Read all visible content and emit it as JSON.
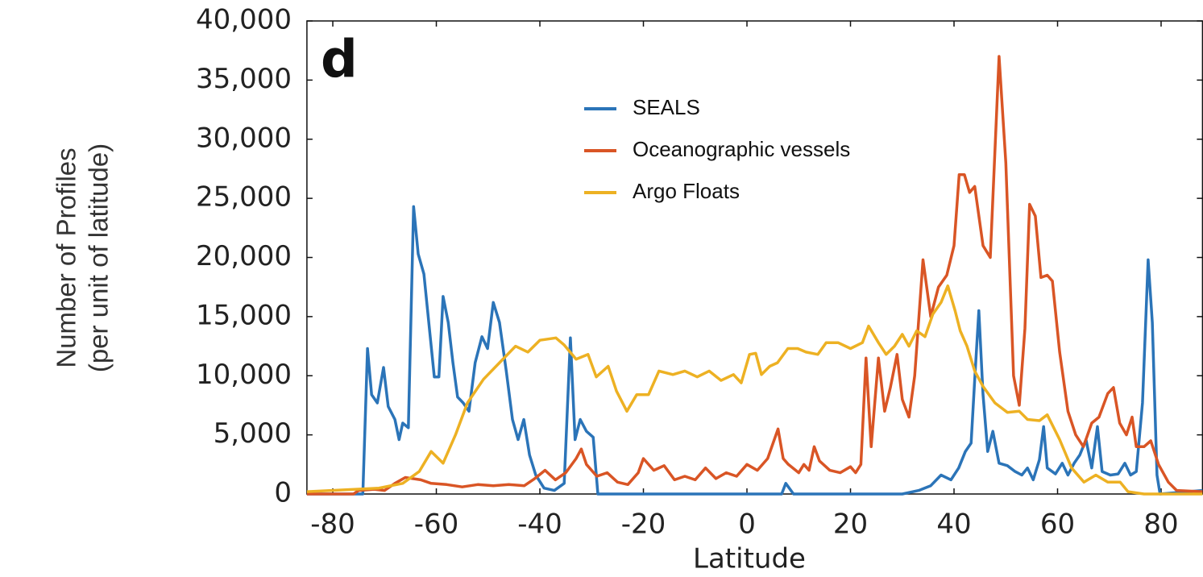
{
  "chart_data": {
    "type": "line",
    "panel_label": "d",
    "xlabel": "Latitude",
    "ylabel": [
      "Number of Profiles",
      "(per unit of latitude)"
    ],
    "xlim": [
      -85,
      88
    ],
    "xticks": [
      -80,
      -60,
      -40,
      -20,
      0,
      20,
      40,
      60,
      80
    ],
    "ylim": [
      0,
      40000
    ],
    "yticks": [
      0,
      {
        "value": 5000,
        "label": "5,000"
      },
      {
        "value": 10000,
        "label": "10,000"
      },
      {
        "value": 15000,
        "label": "15,000"
      },
      {
        "value": 20000,
        "label": "20,000"
      },
      {
        "value": 25000,
        "label": "25,000"
      },
      {
        "value": 30000,
        "label": "30,000"
      },
      {
        "value": 35000,
        "label": "35,000"
      },
      {
        "value": 40000,
        "label": "40,000"
      }
    ],
    "legend": "top-center",
    "series": [
      {
        "name": "SEALS",
        "color": "#2b74b8",
        "x": [
          -85,
          -74.2,
          -73.3,
          -72.5,
          -71.4,
          -70.2,
          -69.3,
          -68,
          -67.2,
          -66.5,
          -65.4,
          -64.4,
          -63.5,
          -62.4,
          -61.3,
          -60.4,
          -59.5,
          -58.7,
          -57.7,
          -56.8,
          -55.9,
          -54.8,
          -53.7,
          -52.5,
          -51.2,
          -50.1,
          -49,
          -47.8,
          -46.5,
          -45.3,
          -44.2,
          -43.1,
          -42,
          -40.8,
          -39.2,
          -37.2,
          -35.3,
          -34.1,
          -33.2,
          -32.2,
          -31,
          -29.7,
          -28.8,
          6.7,
          7.5,
          9,
          30,
          33.2,
          35.5,
          37.5,
          39.4,
          40.9,
          42.2,
          43.3,
          44,
          44.8,
          45.6,
          46.5,
          47.5,
          48.7,
          50.3,
          51.8,
          53.1,
          54.2,
          55.3,
          56.5,
          57.3,
          58,
          59.6,
          60.9,
          62,
          63.2,
          64.3,
          65.5,
          66.6,
          67.7,
          68.6,
          70.2,
          71.7,
          73,
          74.1,
          75.2,
          76.4,
          77.5,
          78.3,
          79.2,
          79.8,
          88
        ],
        "values": [
          0,
          0,
          12300,
          8400,
          7700,
          10700,
          7400,
          6300,
          4600,
          6000,
          5600,
          24300,
          20300,
          18600,
          13800,
          9900,
          9900,
          16700,
          14500,
          11100,
          8200,
          7700,
          7000,
          11100,
          13300,
          12300,
          16200,
          14500,
          10400,
          6300,
          4600,
          6300,
          3300,
          1600,
          500,
          300,
          900,
          13200,
          4600,
          6300,
          5300,
          4800,
          0,
          0,
          900,
          0,
          0,
          300,
          700,
          1600,
          1200,
          2200,
          3600,
          4300,
          9700,
          15500,
          8400,
          3600,
          5300,
          2600,
          2400,
          1900,
          1600,
          2200,
          1200,
          2900,
          5700,
          2200,
          1700,
          2600,
          1600,
          2600,
          3300,
          4600,
          2200,
          5700,
          1900,
          1600,
          1700,
          2600,
          1600,
          1900,
          7700,
          19800,
          14500,
          1600,
          0,
          300
        ]
      },
      {
        "name": "Oceanographic vessels",
        "color": "#d95525",
        "x": [
          -85,
          -76,
          -75,
          -72,
          -70,
          -68,
          -66,
          -63,
          -61,
          -58,
          -55,
          -52,
          -49,
          -46,
          -43,
          -41,
          -39,
          -37,
          -35,
          -33,
          -32,
          -31,
          -29,
          -27,
          -25,
          -23,
          -21,
          -20,
          -18,
          -16,
          -14,
          -12,
          -10,
          -8,
          -6,
          -4,
          -2,
          0,
          2,
          4,
          6,
          7,
          8,
          10,
          11,
          12,
          13,
          14,
          16,
          18,
          20,
          21,
          22,
          23,
          24,
          25.4,
          26.6,
          27.7,
          29,
          30,
          31.3,
          32.4,
          34,
          35.5,
          37,
          38.6,
          40,
          41,
          42,
          43,
          44,
          45.6,
          47,
          48.7,
          50,
          51.5,
          52.6,
          53.7,
          54.6,
          55.7,
          56.8,
          58,
          59,
          60.4,
          62,
          63.5,
          65,
          66.6,
          68,
          69.7,
          70.8,
          72,
          73.3,
          74.4,
          75.2,
          76.7,
          78,
          79.5,
          81.4,
          83,
          88
        ],
        "values": [
          0,
          0,
          300,
          400,
          300,
          900,
          1400,
          1200,
          900,
          800,
          600,
          800,
          700,
          800,
          700,
          1300,
          2000,
          1200,
          1800,
          3000,
          3800,
          2500,
          1500,
          1800,
          1000,
          800,
          1800,
          3000,
          2000,
          2400,
          1200,
          1500,
          1200,
          2200,
          1300,
          1800,
          1500,
          2500,
          2000,
          3000,
          5500,
          3000,
          2500,
          1800,
          2500,
          2000,
          4000,
          2800,
          2000,
          1800,
          2300,
          1800,
          2500,
          11500,
          4000,
          11500,
          7000,
          9000,
          11800,
          8000,
          6500,
          10000,
          19800,
          15000,
          17500,
          18500,
          21000,
          27000,
          27000,
          25500,
          26000,
          21000,
          20000,
          37000,
          28000,
          10000,
          7500,
          14000,
          24500,
          23500,
          18300,
          18500,
          18000,
          12000,
          7000,
          5000,
          4000,
          6000,
          6500,
          8500,
          9000,
          6000,
          5000,
          6500,
          4000,
          4000,
          4500,
          2500,
          1000,
          300,
          200
        ]
      },
      {
        "name": "Argo Floats",
        "color": "#edb123",
        "x": [
          -85,
          -71.1,
          -66.5,
          -63.3,
          -61,
          -58.7,
          -56.3,
          -54,
          -50.9,
          -47.8,
          -44.7,
          -42.3,
          -40,
          -36.9,
          -35.3,
          -33,
          -30.7,
          -29.1,
          -26.8,
          -25.2,
          -23.2,
          -21.3,
          -19,
          -17,
          -14.3,
          -12,
          -9.6,
          -7.3,
          -5,
          -2.6,
          -1.1,
          0.5,
          1.7,
          2.8,
          4.4,
          5.9,
          7.9,
          9.8,
          11.4,
          13.7,
          15.3,
          17.6,
          20,
          22.3,
          23.5,
          25.4,
          26.9,
          28.5,
          30,
          31.3,
          32.8,
          34.4,
          35.9,
          37.5,
          38.8,
          40.2,
          41.2,
          42.5,
          44,
          45.6,
          47.9,
          50.3,
          52.6,
          54.2,
          56.5,
          58,
          60.4,
          62.7,
          65.1,
          67.4,
          69.7,
          72.1,
          73.6,
          76.7,
          88
        ],
        "values": [
          200,
          500,
          900,
          1900,
          3600,
          2600,
          5000,
          7700,
          9700,
          11100,
          12500,
          12000,
          13000,
          13200,
          12600,
          11400,
          11800,
          9900,
          10800,
          8700,
          7000,
          8400,
          8400,
          10400,
          10100,
          10400,
          9900,
          10400,
          9600,
          10100,
          9400,
          11800,
          11900,
          10100,
          10800,
          11100,
          12300,
          12300,
          12000,
          11800,
          12800,
          12800,
          12300,
          12800,
          14200,
          12800,
          11800,
          12500,
          13500,
          12500,
          13800,
          13300,
          15200,
          16200,
          17600,
          15500,
          13800,
          12500,
          10400,
          9100,
          7700,
          6900,
          7000,
          6300,
          6200,
          6700,
          4600,
          2200,
          1000,
          1600,
          1000,
          1000,
          200,
          0,
          0
        ]
      }
    ]
  }
}
